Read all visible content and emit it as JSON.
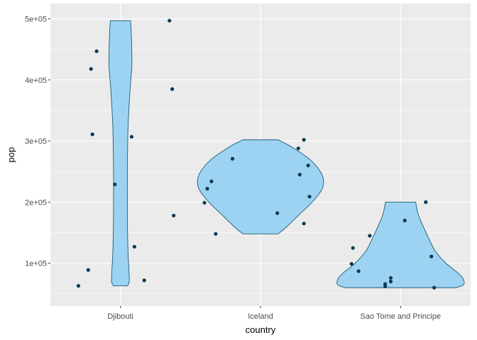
{
  "chart_data": {
    "type": "violin",
    "xlabel": "country",
    "ylabel": "pop",
    "categories": [
      "Djibouti",
      "Iceland",
      "Sao Tome and Principe"
    ],
    "ylim": [
      30000,
      525000
    ],
    "y_ticks": [
      100000,
      200000,
      300000,
      400000,
      500000
    ],
    "y_tick_labels": [
      "1e+05",
      "2e+05",
      "3e+05",
      "4e+05",
      "5e+05"
    ],
    "grid": true,
    "colors": {
      "panel": "#EBEBEB",
      "grid_major": "#FFFFFF",
      "violin_fill": "#9DD3F2",
      "violin_stroke": "#1F5A73",
      "point": "#0B3A52"
    },
    "violins": [
      {
        "category": "Djibouti",
        "profile": [
          [
            63000,
            0.11
          ],
          [
            70000,
            0.14
          ],
          [
            90000,
            0.135
          ],
          [
            120000,
            0.12
          ],
          [
            180000,
            0.11
          ],
          [
            250000,
            0.11
          ],
          [
            320000,
            0.12
          ],
          [
            380000,
            0.15
          ],
          [
            420000,
            0.18
          ],
          [
            450000,
            0.18
          ],
          [
            480000,
            0.17
          ],
          [
            497000,
            0.16
          ]
        ]
      },
      {
        "category": "Iceland",
        "profile": [
          [
            148000,
            0.28
          ],
          [
            160000,
            0.42
          ],
          [
            180000,
            0.62
          ],
          [
            200000,
            0.82
          ],
          [
            220000,
            0.97
          ],
          [
            235000,
            1.0
          ],
          [
            250000,
            0.95
          ],
          [
            270000,
            0.78
          ],
          [
            290000,
            0.5
          ],
          [
            302000,
            0.28
          ]
        ]
      },
      {
        "category": "Sao Tome and Principe",
        "profile": [
          [
            60000,
            0.88
          ],
          [
            65000,
            1.0
          ],
          [
            75000,
            0.99
          ],
          [
            85000,
            0.9
          ],
          [
            100000,
            0.72
          ],
          [
            120000,
            0.55
          ],
          [
            140000,
            0.45
          ],
          [
            160000,
            0.36
          ],
          [
            180000,
            0.28
          ],
          [
            200000,
            0.24
          ]
        ]
      }
    ],
    "points": [
      {
        "category": "Djibouti",
        "jitter": -0.3,
        "y": 63000
      },
      {
        "category": "Djibouti",
        "jitter": -0.23,
        "y": 89000
      },
      {
        "category": "Djibouti",
        "jitter": -0.2,
        "y": 311000
      },
      {
        "category": "Djibouti",
        "jitter": -0.21,
        "y": 418000
      },
      {
        "category": "Djibouti",
        "jitter": -0.17,
        "y": 447000
      },
      {
        "category": "Djibouti",
        "jitter": -0.04,
        "y": 229000
      },
      {
        "category": "Djibouti",
        "jitter": 0.08,
        "y": 307000
      },
      {
        "category": "Djibouti",
        "jitter": 0.1,
        "y": 127000
      },
      {
        "category": "Djibouti",
        "jitter": 0.17,
        "y": 72000
      },
      {
        "category": "Djibouti",
        "jitter": 0.35,
        "y": 497000
      },
      {
        "category": "Djibouti",
        "jitter": 0.37,
        "y": 385000
      },
      {
        "category": "Djibouti",
        "jitter": 0.38,
        "y": 178000
      },
      {
        "category": "Iceland",
        "jitter": -0.4,
        "y": 199000
      },
      {
        "category": "Iceland",
        "jitter": -0.38,
        "y": 222000
      },
      {
        "category": "Iceland",
        "jitter": -0.35,
        "y": 234000
      },
      {
        "category": "Iceland",
        "jitter": -0.32,
        "y": 148000
      },
      {
        "category": "Iceland",
        "jitter": -0.2,
        "y": 271000
      },
      {
        "category": "Iceland",
        "jitter": 0.12,
        "y": 182000
      },
      {
        "category": "Iceland",
        "jitter": 0.27,
        "y": 288000
      },
      {
        "category": "Iceland",
        "jitter": 0.28,
        "y": 245000
      },
      {
        "category": "Iceland",
        "jitter": 0.31,
        "y": 302000
      },
      {
        "category": "Iceland",
        "jitter": 0.31,
        "y": 165000
      },
      {
        "category": "Iceland",
        "jitter": 0.34,
        "y": 260000
      },
      {
        "category": "Iceland",
        "jitter": 0.35,
        "y": 209000
      },
      {
        "category": "Sao Tome and Principe",
        "jitter": -0.34,
        "y": 125000
      },
      {
        "category": "Sao Tome and Principe",
        "jitter": -0.35,
        "y": 99000
      },
      {
        "category": "Sao Tome and Principe",
        "jitter": -0.3,
        "y": 87000
      },
      {
        "category": "Sao Tome and Principe",
        "jitter": -0.22,
        "y": 145000
      },
      {
        "category": "Sao Tome and Principe",
        "jitter": -0.11,
        "y": 62000
      },
      {
        "category": "Sao Tome and Principe",
        "jitter": -0.11,
        "y": 66000
      },
      {
        "category": "Sao Tome and Principe",
        "jitter": -0.07,
        "y": 70000
      },
      {
        "category": "Sao Tome and Principe",
        "jitter": -0.07,
        "y": 76000
      },
      {
        "category": "Sao Tome and Principe",
        "jitter": 0.03,
        "y": 170000
      },
      {
        "category": "Sao Tome and Principe",
        "jitter": 0.18,
        "y": 200000
      },
      {
        "category": "Sao Tome and Principe",
        "jitter": 0.22,
        "y": 111000
      },
      {
        "category": "Sao Tome and Principe",
        "jitter": 0.24,
        "y": 60000
      }
    ]
  }
}
